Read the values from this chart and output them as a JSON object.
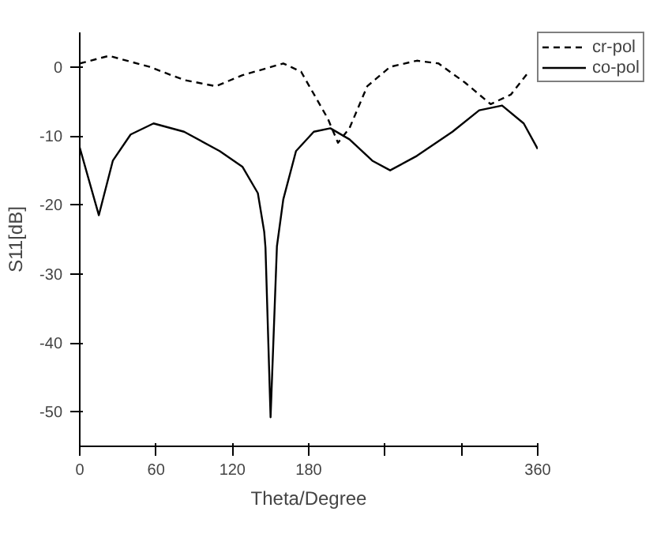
{
  "chart_data": {
    "type": "line",
    "xlabel": "Theta/Degree",
    "ylabel": "S11[dB]",
    "xlim": [
      0,
      360
    ],
    "ylim": [
      -55,
      5
    ],
    "xticks": [
      0,
      60,
      120,
      180,
      {
        "value": 240,
        "label": null
      },
      {
        "value": 300,
        "label": null
      },
      360
    ],
    "yticks": [
      0,
      -10,
      -20,
      -30,
      -40,
      -50
    ],
    "grid": false,
    "legend": "top right",
    "marker": "none",
    "series": [
      {
        "name": "cr-pol",
        "color": "#000000",
        "line_style": "dashed",
        "x": [
          0,
          23,
          55,
          82,
          107,
          128,
          160,
          174,
          195,
          203,
          212,
          226,
          244,
          265,
          282,
          303,
          323,
          339,
          353
        ],
        "values": [
          0.5,
          1.6,
          0,
          -1.9,
          -2.8,
          -1.2,
          0.5,
          -0.7,
          -7.5,
          -11,
          -8.9,
          -2.8,
          0,
          0.9,
          0.5,
          -2.3,
          -5.4,
          -4,
          -0.7
        ]
      },
      {
        "name": "co-pol",
        "color": "#000000",
        "line_style": "solid",
        "x": [
          0,
          15,
          26,
          40,
          58,
          82,
          110,
          128,
          140,
          145,
          146,
          150,
          155,
          160,
          170,
          184,
          197,
          212,
          230,
          244,
          265,
          293,
          314,
          332,
          349,
          360
        ],
        "values": [
          -11.7,
          -21.5,
          -13.6,
          -9.8,
          -8.2,
          -9.4,
          -12.2,
          -14.5,
          -18.3,
          -23.9,
          -26.2,
          -50.8,
          -26,
          -19.2,
          -12.2,
          -9.4,
          -8.9,
          -10.5,
          -13.6,
          -15,
          -12.9,
          -9.4,
          -6.3,
          -5.6,
          -8.2,
          -11.9
        ]
      }
    ]
  }
}
